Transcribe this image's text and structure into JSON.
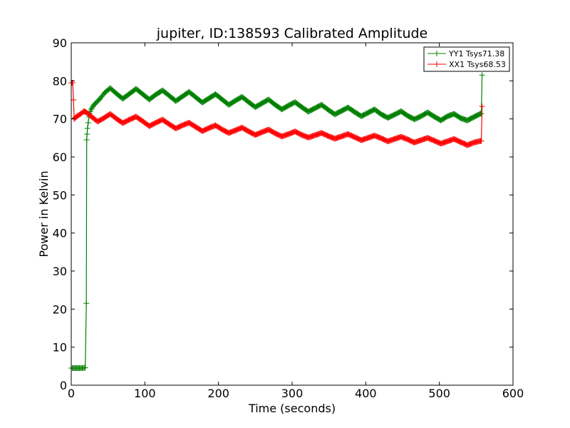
{
  "chart_data": {
    "type": "line",
    "title": "jupiter, ID:138593 Calibrated Amplitude",
    "xlabel": "Time (seconds)",
    "ylabel": "Power in Kelvin",
    "xlim": [
      0,
      600
    ],
    "ylim": [
      0,
      90
    ],
    "xticks": [
      0,
      100,
      200,
      300,
      400,
      500,
      600
    ],
    "yticks": [
      0,
      10,
      20,
      30,
      40,
      50,
      60,
      70,
      80,
      90
    ],
    "grid": false,
    "legend_position": "top-right",
    "marker": "+",
    "series": [
      {
        "name": "YY1 Tsys71.38",
        "color": "#008000",
        "x": [
          0,
          5,
          10,
          15,
          19,
          20.5,
          21,
          21.5,
          22,
          23,
          24,
          25,
          27,
          30,
          35,
          40,
          45,
          53,
          61,
          70,
          79,
          88,
          97,
          106,
          115,
          124,
          133,
          142,
          151,
          160,
          169,
          178,
          187,
          196,
          205,
          214,
          223,
          232,
          241,
          250,
          259,
          268,
          277,
          286,
          295,
          304,
          313,
          322,
          331,
          340,
          349,
          358,
          367,
          376,
          385,
          394,
          403,
          412,
          421,
          430,
          439,
          448,
          457,
          466,
          475,
          484,
          493,
          502,
          511,
          520,
          529,
          538,
          547,
          556,
          557,
          558
        ],
        "y": [
          4.5,
          4.5,
          4.5,
          4.5,
          4.6,
          21.5,
          64.5,
          66,
          67.5,
          69,
          70.5,
          71.5,
          72.5,
          73.5,
          74.5,
          75.5,
          76.8,
          78.1,
          76.7,
          75.3,
          76.6,
          77.9,
          76.5,
          75.1,
          76.4,
          77.5,
          76.1,
          74.7,
          75.9,
          77.1,
          75.7,
          74.3,
          75.4,
          76.5,
          75.1,
          73.7,
          74.8,
          75.8,
          74.4,
          73.1,
          74.1,
          75.1,
          73.7,
          72.5,
          73.5,
          74.4,
          73.1,
          71.9,
          72.8,
          73.7,
          72.4,
          71.2,
          72.1,
          73,
          71.8,
          70.7,
          71.6,
          72.5,
          71.2,
          70.3,
          71.1,
          72,
          70.8,
          69.9,
          70.7,
          71.7,
          70.6,
          69.6,
          70.7,
          71.3,
          70.2,
          69.6,
          70.5,
          71.4,
          71.4,
          81.5
        ]
      },
      {
        "name": "XX1 Tsys68.53",
        "color": "#ff0000",
        "x": [
          0,
          2,
          3,
          4,
          7,
          12,
          17,
          20,
          28,
          36,
          45,
          53,
          61,
          70,
          79,
          88,
          97,
          106,
          115,
          124,
          133,
          142,
          151,
          160,
          169,
          178,
          187,
          196,
          205,
          214,
          223,
          232,
          241,
          250,
          259,
          268,
          277,
          286,
          295,
          304,
          313,
          322,
          331,
          340,
          349,
          358,
          367,
          376,
          385,
          394,
          403,
          412,
          421,
          430,
          439,
          448,
          457,
          466,
          475,
          484,
          493,
          502,
          511,
          520,
          529,
          538,
          547,
          556,
          557,
          558
        ],
        "y": [
          79.5,
          79.5,
          75,
          70,
          70.6,
          71.2,
          72,
          71.8,
          70.5,
          69.3,
          70.3,
          71.3,
          70.1,
          68.9,
          69.8,
          70.6,
          69.4,
          68.1,
          69,
          69.8,
          68.6,
          67.5,
          68.3,
          69,
          67.9,
          66.8,
          67.6,
          68.3,
          67.2,
          66.3,
          67,
          67.7,
          66.7,
          65.8,
          66.5,
          67.2,
          66.2,
          65.4,
          66,
          66.7,
          65.8,
          65.1,
          65.7,
          66.3,
          65.5,
          64.8,
          65.4,
          66,
          65.2,
          64.4,
          65,
          65.6,
          64.9,
          64.1,
          64.7,
          65.3,
          64.6,
          63.8,
          64.4,
          65,
          64.3,
          63.5,
          64.1,
          64.7,
          63.9,
          63.1,
          63.8,
          64.2,
          64.2,
          73.3
        ]
      }
    ]
  }
}
